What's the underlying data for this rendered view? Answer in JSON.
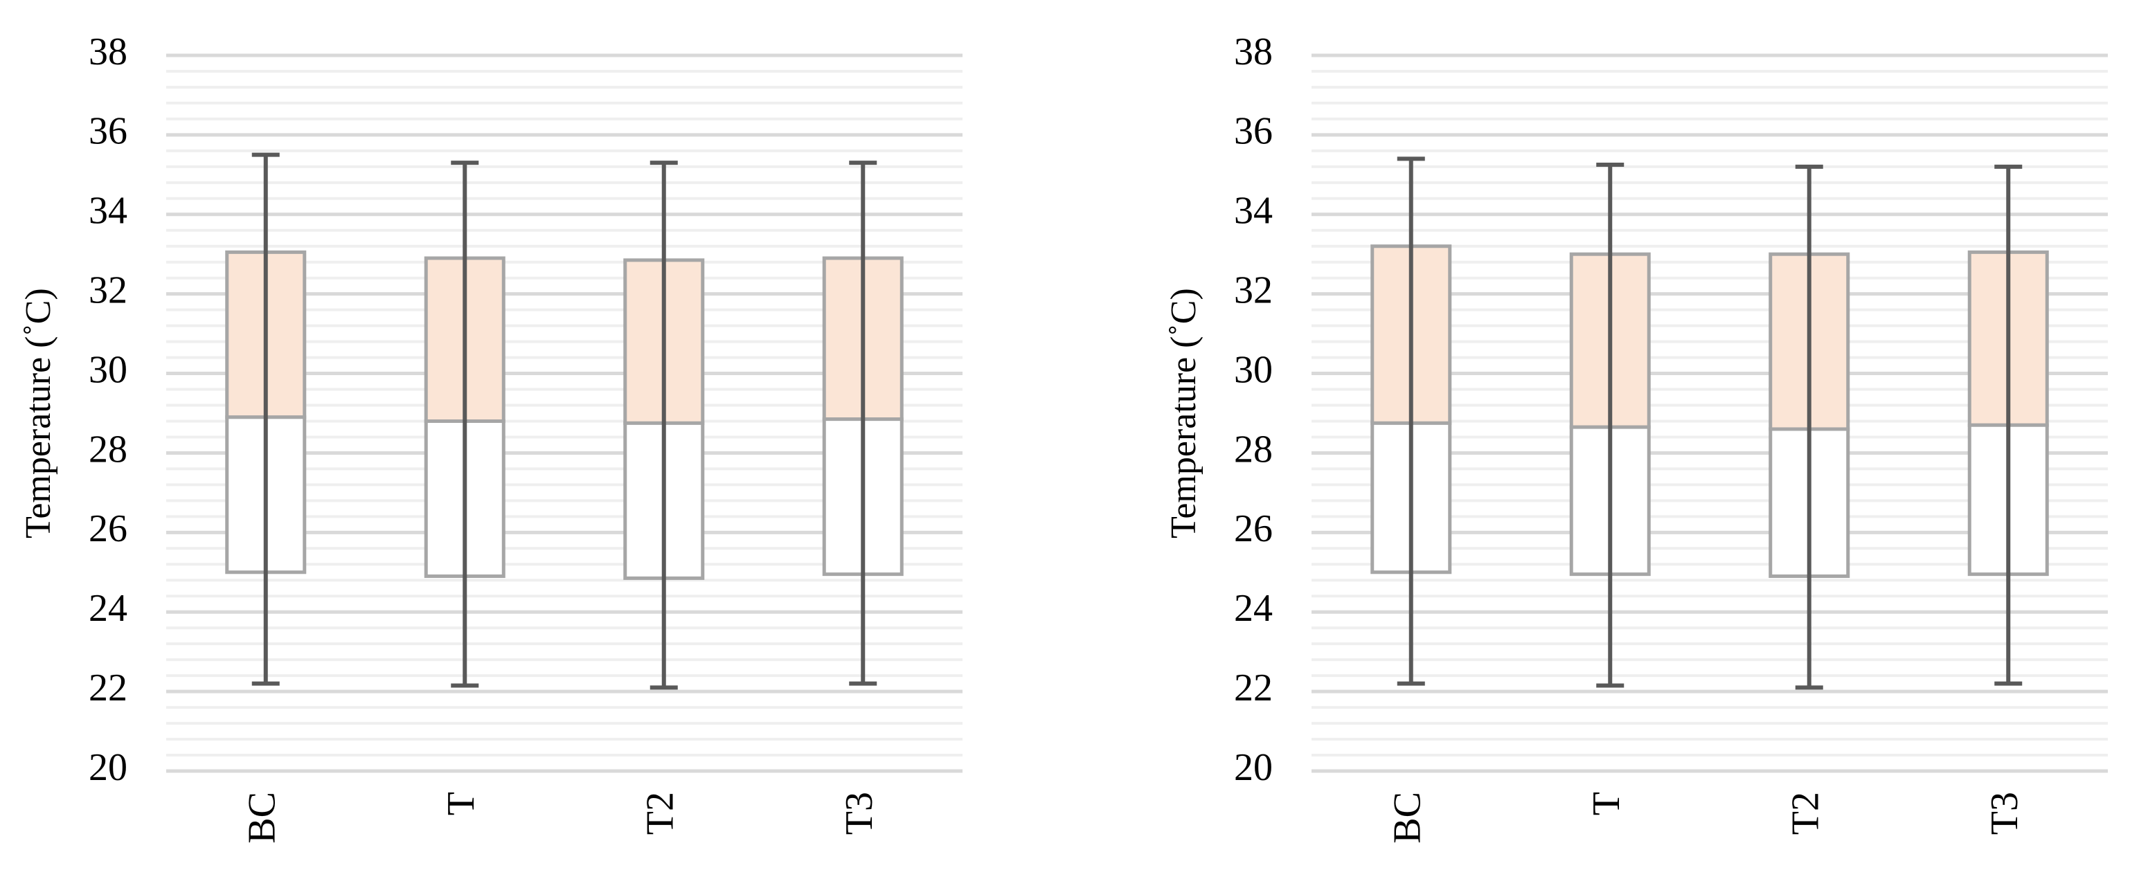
{
  "chart_data": [
    {
      "type": "box",
      "ylabel": "Temperature (˚C)",
      "categories": [
        "BC",
        "T",
        "T2",
        "T3"
      ],
      "min": [
        22.2,
        22.15,
        22.1,
        22.2
      ],
      "q1": [
        25.0,
        24.9,
        24.85,
        24.95
      ],
      "median": [
        28.9,
        28.8,
        28.75,
        28.85
      ],
      "q3": [
        33.05,
        32.9,
        32.85,
        32.9
      ],
      "max": [
        35.5,
        35.3,
        35.3,
        35.3
      ],
      "upper_color": "#fbe5d6",
      "lower_color": "#ffffff",
      "box_edge_color": "#a6a6a6",
      "whisker_color": "#595959",
      "ylim": [
        20,
        38
      ],
      "yticks": [
        20,
        22,
        24,
        26,
        28,
        30,
        32,
        34,
        36,
        38
      ],
      "grid": true,
      "minor_grid": true
    },
    {
      "type": "box",
      "ylabel": "Temperature (˚C)",
      "categories": [
        "BC",
        "T",
        "T2",
        "T3"
      ],
      "min": [
        22.2,
        22.15,
        22.1,
        22.2
      ],
      "q1": [
        25.0,
        24.95,
        24.9,
        24.95
      ],
      "median": [
        28.75,
        28.65,
        28.6,
        28.7
      ],
      "q3": [
        33.2,
        33.0,
        33.0,
        33.05
      ],
      "max": [
        35.4,
        35.25,
        35.2,
        35.2
      ],
      "upper_color": "#fbe5d6",
      "lower_color": "#ffffff",
      "box_edge_color": "#a6a6a6",
      "whisker_color": "#595959",
      "ylim": [
        20,
        38
      ],
      "yticks": [
        20,
        22,
        24,
        26,
        28,
        30,
        32,
        34,
        36,
        38
      ],
      "grid": true,
      "minor_grid": true
    }
  ]
}
